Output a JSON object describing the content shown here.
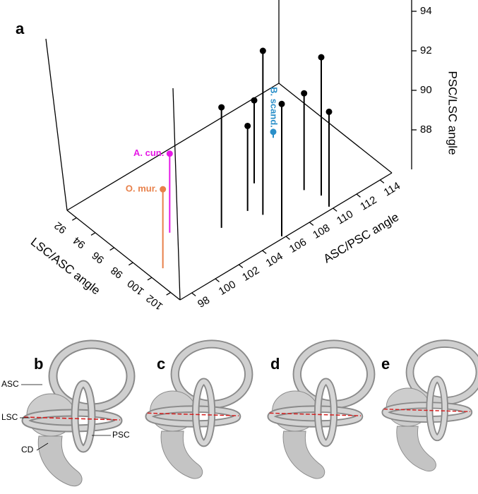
{
  "chart_data": {
    "type": "scatter3d",
    "panel_label": "a",
    "xlabel": "LSC/ASC angle",
    "ylabel": "ASC/PSC angle",
    "zlabel": "PSC/LSC angle",
    "xlim": [
      91,
      103
    ],
    "xticks": [
      92,
      94,
      96,
      98,
      100,
      102
    ],
    "ylim": [
      97,
      115
    ],
    "yticks": [
      98,
      100,
      102,
      104,
      106,
      108,
      110,
      112,
      114
    ],
    "zlim": [
      86,
      95
    ],
    "zticks": [
      88,
      90,
      92,
      94
    ],
    "series": [
      {
        "color": "#000000",
        "x": [
          99.4,
          99.3,
          97.5,
          100.3,
          102.8,
          100.3,
          101.5,
          102.7
        ],
        "y": [
          103.4,
          105.7,
          107.7,
          106.2,
          105.8,
          109.7,
          110.2,
          109.9
        ],
        "z": [
          92.1,
          90.3,
          90.2,
          94.3,
          92.7,
          90.9,
          93.0,
          90.8
        ]
      },
      {
        "name": "A. cun.",
        "color": "#e619e6",
        "x": [
          97.4
        ],
        "y": [
          100.6
        ],
        "z": [
          90.0
        ]
      },
      {
        "name": "O. mur.",
        "color": "#e8804a",
        "x": [
          99.8
        ],
        "y": [
          98.1
        ],
        "z": [
          90.0
        ]
      },
      {
        "name": "B. scand.",
        "color": "#2a8fc9",
        "x": [
          94.9
        ],
        "y": [
          111.4
        ],
        "z": [
          86.3
        ]
      }
    ]
  },
  "figure_panels": [
    {
      "label": "b",
      "annotations": [
        "ASC",
        "LSC",
        "CD",
        "PSC"
      ]
    },
    {
      "label": "c"
    },
    {
      "label": "d"
    },
    {
      "label": "e"
    }
  ]
}
